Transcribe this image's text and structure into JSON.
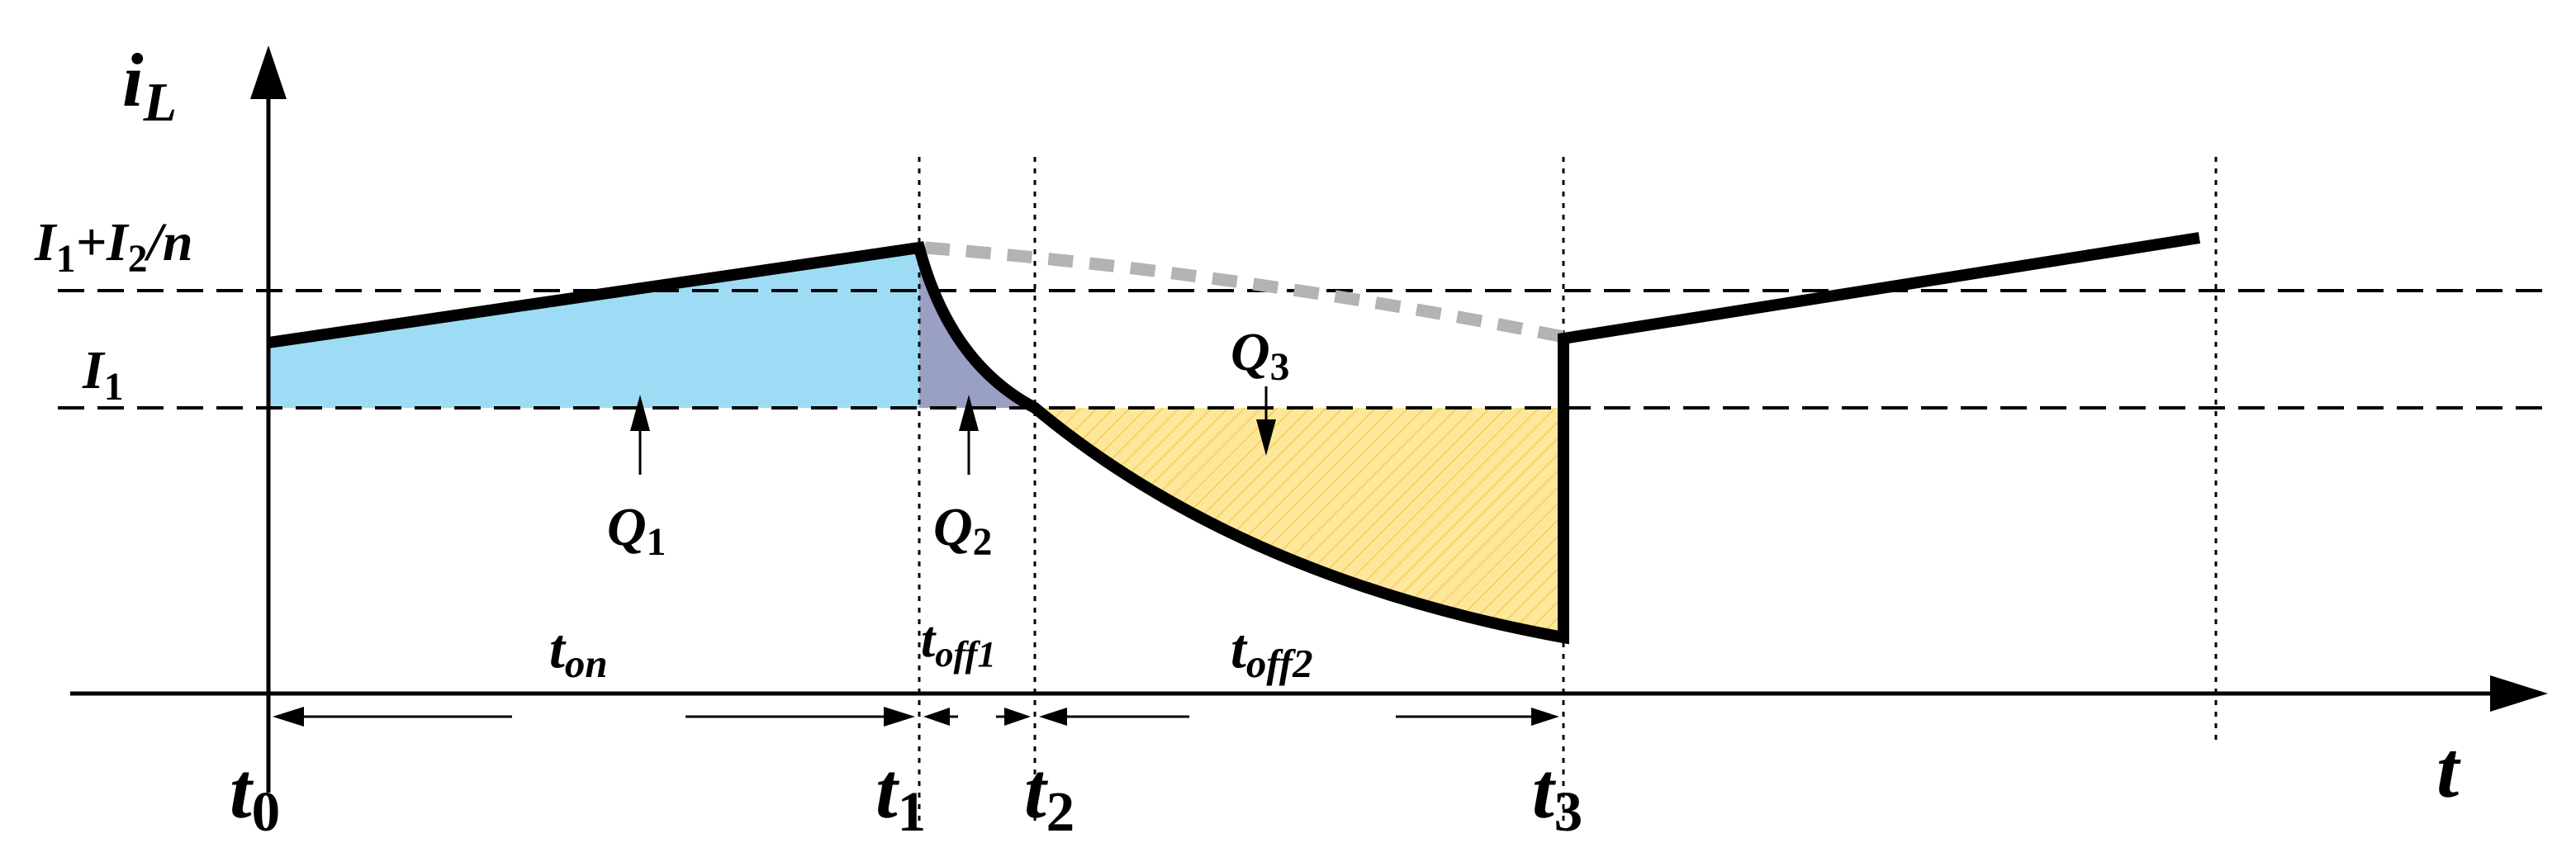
{
  "axes": {
    "y_label": "i",
    "y_label_sub": "L",
    "x_label": "t"
  },
  "levels": {
    "upper": {
      "a": "I",
      "a_sub": "1",
      "b": "+I",
      "b_sub": "2",
      "c": "/n"
    },
    "lower": {
      "a": "I",
      "a_sub": "1"
    }
  },
  "charges": {
    "q1": {
      "main": "Q",
      "sub": "1"
    },
    "q2": {
      "main": "Q",
      "sub": "2"
    },
    "q3": {
      "main": "Q",
      "sub": "3"
    }
  },
  "intervals": {
    "on": {
      "main": "t",
      "sub": "on"
    },
    "off1": {
      "main": "t",
      "sub": "off1"
    },
    "off2": {
      "main": "t",
      "sub": "off2"
    }
  },
  "times": {
    "t0": {
      "main": "t",
      "sub": "0"
    },
    "t1": {
      "main": "t",
      "sub": "1"
    },
    "t2": {
      "main": "t",
      "sub": "2"
    },
    "t3": {
      "main": "t",
      "sub": "3"
    }
  },
  "colors": {
    "q1_fill": "#9edcf5",
    "q2_fill": "#9aa0c4",
    "q3_fill": "#fde79a",
    "waveform": "#000000",
    "continuation_dashed": "#b3b3b3"
  }
}
